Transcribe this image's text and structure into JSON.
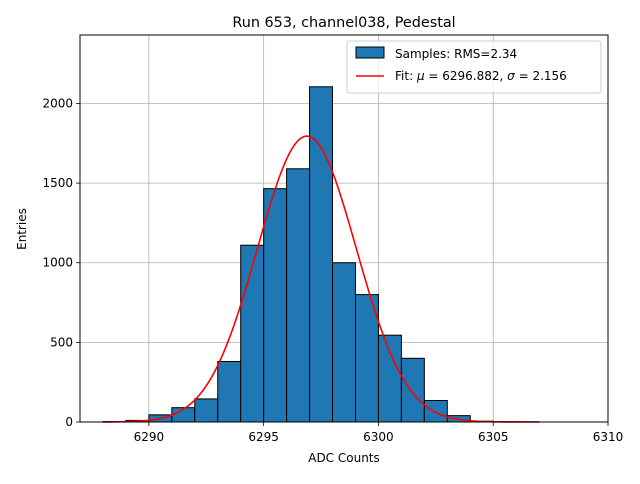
{
  "chart_data": {
    "type": "bar",
    "title": "Run 653, channel038, Pedestal",
    "xlabel": "ADC Counts",
    "ylabel": "Entries",
    "xlim": [
      6287,
      6310
    ],
    "ylim": [
      0,
      2430
    ],
    "xticks": [
      6290,
      6295,
      6300,
      6305,
      6310
    ],
    "yticks": [
      0,
      500,
      1000,
      1500,
      2000
    ],
    "grid": true,
    "legend_position": "top-right",
    "colors": {
      "bars": "#1f77b4",
      "fit": "#ff0000",
      "grid": "#b0b0b0"
    },
    "histogram": {
      "name": "Samples: RMS=2.34",
      "bin_width": 1,
      "bin_edges_start": 6288,
      "bins": [
        {
          "left": 6288,
          "value": 3
        },
        {
          "left": 6289,
          "value": 10
        },
        {
          "left": 6290,
          "value": 45
        },
        {
          "left": 6291,
          "value": 90
        },
        {
          "left": 6292,
          "value": 145
        },
        {
          "left": 6293,
          "value": 380
        },
        {
          "left": 6294,
          "value": 1110
        },
        {
          "left": 6295,
          "value": 1465
        },
        {
          "left": 6296,
          "value": 1590
        },
        {
          "left": 6297,
          "value": 2105
        },
        {
          "left": 6298,
          "value": 1000
        },
        {
          "left": 6299,
          "value": 800
        },
        {
          "left": 6300,
          "value": 545
        },
        {
          "left": 6301,
          "value": 400
        },
        {
          "left": 6302,
          "value": 135
        },
        {
          "left": 6303,
          "value": 40
        },
        {
          "left": 6304,
          "value": 5
        },
        {
          "left": 6305,
          "value": 2
        },
        {
          "left": 6306,
          "value": 1
        }
      ]
    },
    "fit": {
      "name_prefix": "Fit: ",
      "mu_symbol": "μ",
      "mu_text": " = 6296.882, ",
      "sigma_symbol": "σ",
      "sigma_text": " = 2.156",
      "mu": 6296.882,
      "sigma": 2.156,
      "amplitude": 1795,
      "x_range": [
        6288,
        6307
      ]
    }
  }
}
